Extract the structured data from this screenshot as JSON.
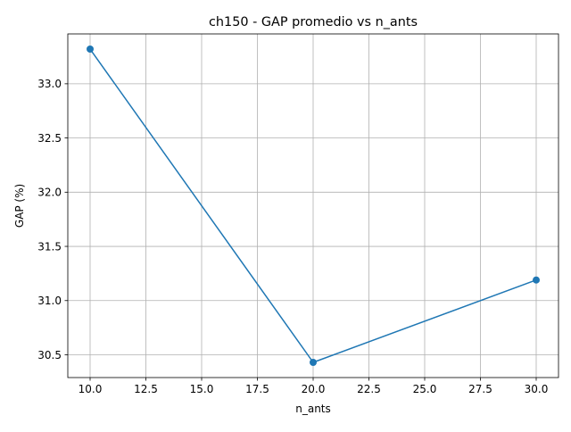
{
  "chart_data": {
    "type": "line",
    "title": "ch150 - GAP promedio vs n_ants",
    "xlabel": "n_ants",
    "ylabel": "GAP (%)",
    "x": [
      10,
      20,
      30
    ],
    "series": [
      {
        "values": [
          33.32,
          30.43,
          31.19
        ],
        "color": "#1f77b4",
        "marker": "circle"
      }
    ],
    "xlim": [
      9.0,
      31.0
    ],
    "ylim": [
      30.29,
      33.46
    ],
    "xticks": [
      "10.0",
      "12.5",
      "15.0",
      "17.5",
      "20.0",
      "22.5",
      "25.0",
      "27.5",
      "30.0"
    ],
    "yticks": [
      "30.5",
      "31.0",
      "31.5",
      "32.0",
      "32.5",
      "33.0"
    ],
    "grid": true
  }
}
